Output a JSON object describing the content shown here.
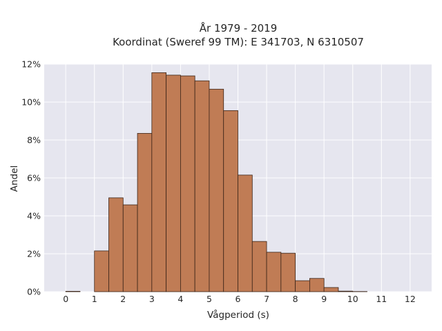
{
  "chart_data": {
    "type": "bar",
    "title_lines": [
      "År 1979 - 2019",
      "Koordinat (Sweref 99 TM): E 341703, N 6310507"
    ],
    "xlabel": "Vågperiod (s)",
    "ylabel": "Andel",
    "xlim": [
      -0.75,
      12.75
    ],
    "ylim": [
      0,
      12
    ],
    "x_ticks": [
      0,
      1,
      2,
      3,
      4,
      5,
      6,
      7,
      8,
      9,
      10,
      11,
      12
    ],
    "y_ticks": [
      0,
      2,
      4,
      6,
      8,
      10,
      12
    ],
    "y_tick_labels": [
      "0%",
      "2%",
      "4%",
      "6%",
      "8%",
      "10%",
      "12%"
    ],
    "bin_width": 0.5,
    "bin_starts": [
      0,
      0.5,
      1,
      1.5,
      2,
      2.5,
      3,
      3.5,
      4,
      4.5,
      5,
      5.5,
      6,
      6.5,
      7,
      7.5,
      8,
      8.5,
      9,
      9.5,
      10
    ],
    "values": [
      0.02,
      0,
      2.15,
      4.95,
      4.58,
      8.35,
      11.55,
      11.42,
      11.38,
      11.12,
      10.68,
      9.55,
      6.15,
      2.65,
      2.08,
      2.03,
      0.58,
      0.7,
      0.22,
      0.03,
      0.01
    ],
    "grid": true,
    "colors": {
      "bar": "#c07c55",
      "bar_edge": "#3a2418",
      "plot_bg": "#e6e6ef",
      "grid": "#ffffff"
    }
  }
}
